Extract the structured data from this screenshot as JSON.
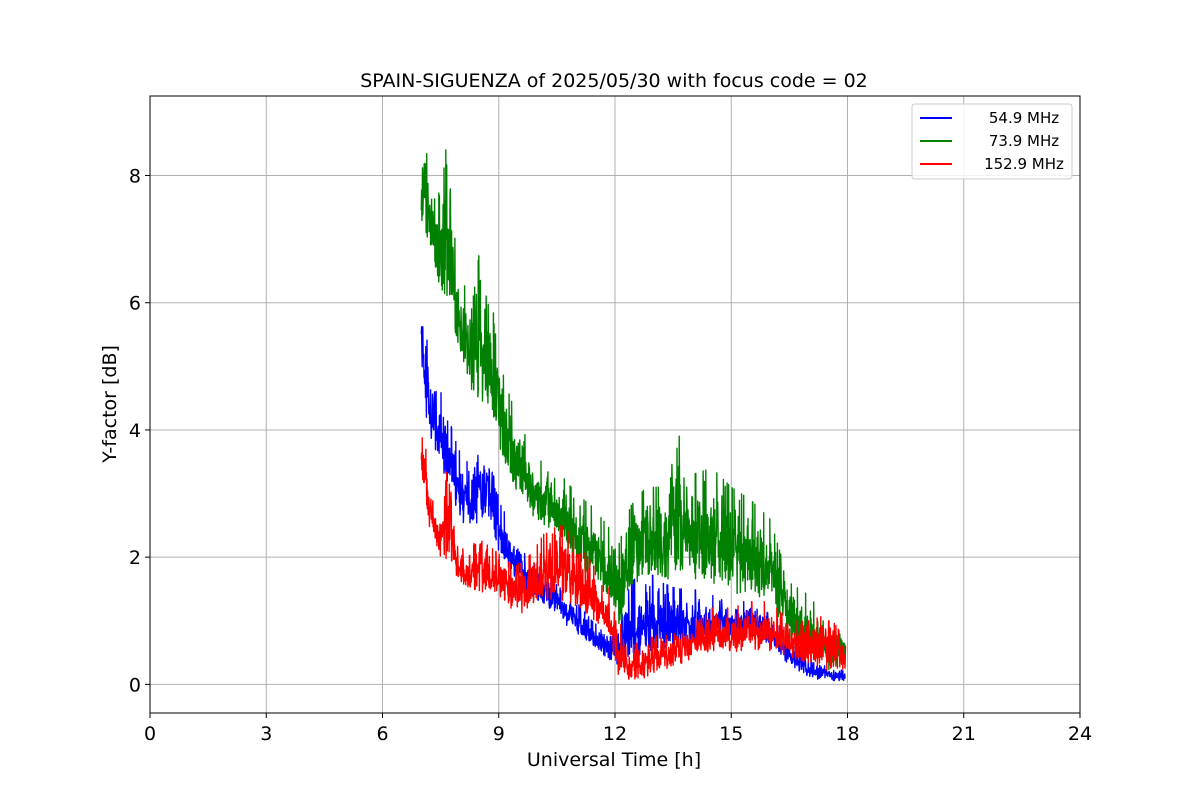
{
  "chart_data": {
    "type": "line",
    "title": "SPAIN-SIGUENZA of 2025/05/30 with focus code = 02",
    "xlabel": "Universal Time [h]",
    "ylabel": "Y-factor [dB]",
    "xlim": [
      0,
      24
    ],
    "ylim": [
      -0.45,
      9.25
    ],
    "xticks": [
      0,
      3,
      6,
      9,
      12,
      15,
      18,
      21,
      24
    ],
    "yticks": [
      0,
      2,
      4,
      6,
      8
    ],
    "grid": true,
    "legend_position": "top-right",
    "series": [
      {
        "name": "54.9 MHz",
        "color": "#0000ff",
        "x": [
          7.0,
          7.1,
          7.2,
          7.35,
          7.5,
          7.7,
          7.9,
          8.1,
          8.3,
          8.5,
          8.7,
          8.9,
          9.1,
          9.3,
          9.6,
          9.9,
          10.2,
          10.6,
          11.0,
          11.4,
          11.8,
          12.1,
          12.4,
          12.8,
          13.2,
          13.6,
          14.0,
          14.5,
          15.0,
          15.5,
          16.0,
          16.5,
          17.0,
          17.5,
          17.95
        ],
        "lo": [
          4.9,
          4.2,
          3.9,
          3.6,
          3.3,
          3.0,
          2.7,
          2.5,
          2.4,
          2.5,
          2.6,
          2.3,
          1.9,
          1.7,
          1.5,
          1.3,
          1.2,
          1.0,
          0.8,
          0.6,
          0.4,
          0.3,
          0.35,
          0.45,
          0.5,
          0.55,
          0.6,
          0.65,
          0.7,
          0.75,
          0.6,
          0.3,
          0.1,
          0.05,
          0.05
        ],
        "hi": [
          6.3,
          5.8,
          5.0,
          4.7,
          4.6,
          4.2,
          3.8,
          3.5,
          3.5,
          4.0,
          3.8,
          3.5,
          2.8,
          2.4,
          2.1,
          1.9,
          1.8,
          1.6,
          1.3,
          1.0,
          0.8,
          0.9,
          1.6,
          1.8,
          1.6,
          1.5,
          1.5,
          1.4,
          1.3,
          1.3,
          1.1,
          0.7,
          0.5,
          0.3,
          0.2
        ]
      },
      {
        "name": "73.9 MHz",
        "color": "#008000",
        "x": [
          7.0,
          7.1,
          7.2,
          7.35,
          7.5,
          7.7,
          7.9,
          8.1,
          8.3,
          8.5,
          8.7,
          8.9,
          9.1,
          9.3,
          9.6,
          9.9,
          10.2,
          10.6,
          11.0,
          11.4,
          11.8,
          12.1,
          12.4,
          12.8,
          13.2,
          13.6,
          14.0,
          14.5,
          15.0,
          15.5,
          16.0,
          16.5,
          17.0,
          17.5,
          17.95
        ],
        "lo": [
          7.3,
          7.0,
          6.8,
          6.5,
          6.2,
          5.9,
          5.4,
          4.9,
          4.6,
          4.5,
          4.3,
          3.9,
          3.5,
          3.2,
          2.9,
          2.6,
          2.4,
          2.2,
          1.9,
          1.6,
          1.3,
          0.8,
          1.5,
          1.7,
          1.6,
          1.7,
          1.6,
          1.5,
          1.4,
          1.4,
          1.3,
          0.7,
          0.4,
          0.2,
          0.3
        ],
        "hi": [
          8.4,
          8.5,
          8.3,
          8.0,
          7.6,
          8.8,
          6.8,
          6.3,
          5.9,
          6.8,
          6.0,
          5.8,
          4.9,
          4.5,
          4.0,
          3.7,
          3.4,
          3.3,
          3.0,
          2.8,
          2.5,
          2.2,
          2.8,
          3.1,
          3.1,
          4.0,
          3.3,
          3.4,
          3.1,
          2.9,
          2.6,
          1.6,
          1.4,
          1.0,
          0.9
        ]
      },
      {
        "name": "152.9 MHz",
        "color": "#ff0000",
        "x": [
          7.0,
          7.1,
          7.2,
          7.35,
          7.5,
          7.7,
          7.9,
          8.1,
          8.3,
          8.5,
          8.7,
          8.9,
          9.1,
          9.3,
          9.6,
          9.9,
          10.2,
          10.6,
          11.0,
          11.4,
          11.8,
          12.1,
          12.4,
          12.8,
          13.2,
          13.6,
          14.0,
          14.5,
          15.0,
          15.5,
          16.0,
          16.5,
          17.0,
          17.5,
          17.95
        ],
        "lo": [
          3.3,
          3.0,
          2.5,
          2.2,
          2.0,
          1.8,
          1.7,
          1.5,
          1.4,
          1.4,
          1.5,
          1.4,
          1.3,
          1.2,
          1.1,
          1.2,
          1.3,
          1.3,
          1.2,
          1.0,
          0.8,
          0.1,
          0.05,
          0.1,
          0.2,
          0.3,
          0.4,
          0.5,
          0.5,
          0.55,
          0.5,
          0.4,
          0.3,
          0.2,
          0.2
        ],
        "hi": [
          3.9,
          3.8,
          3.2,
          2.8,
          2.6,
          4.1,
          2.3,
          2.1,
          2.0,
          2.7,
          2.2,
          2.1,
          2.0,
          1.9,
          1.9,
          2.1,
          2.4,
          2.5,
          2.3,
          1.9,
          1.6,
          1.0,
          0.6,
          0.7,
          0.8,
          0.9,
          1.0,
          1.2,
          1.2,
          1.3,
          1.3,
          1.0,
          1.0,
          1.1,
          0.7
        ]
      }
    ]
  }
}
